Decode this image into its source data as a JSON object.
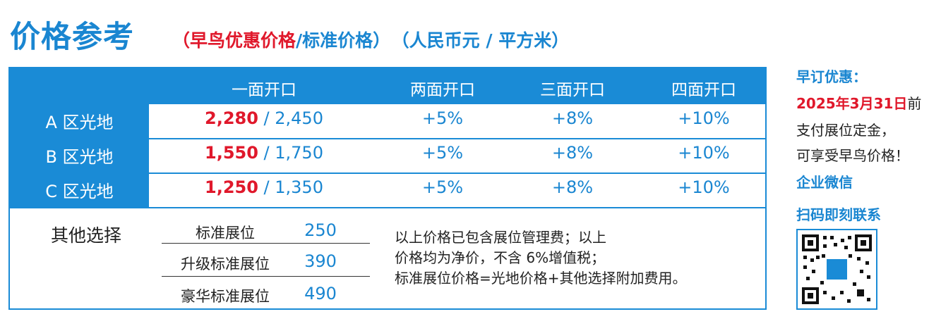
{
  "title": "价格参考",
  "subtitle": {
    "open_paren": "（",
    "early": "早鸟优惠价格",
    "rest": "/标准价格）",
    "unit": "（人民币元 / 平方米）"
  },
  "table": {
    "headers": [
      "一面开口",
      "两面开口",
      "三面开口",
      "四面开口"
    ],
    "rows": [
      {
        "label": "A 区光地",
        "early": "2,280",
        "standard": " / 2,450",
        "two": "+5%",
        "three": "+8%",
        "four": "+10%"
      },
      {
        "label": "B 区光地",
        "early": "1,550",
        "standard": " / 1,750",
        "two": "+5%",
        "three": "+8%",
        "four": "+10%"
      },
      {
        "label": "C 区光地",
        "early": "1,250",
        "standard": " / 1,350",
        "two": "+5%",
        "three": "+8%",
        "four": "+10%"
      }
    ]
  },
  "other": {
    "title": "其他选择",
    "options": [
      {
        "name": "标准展位",
        "price": "250"
      },
      {
        "name": "升级标准展位",
        "price": "390"
      },
      {
        "name": "豪华标准展位",
        "price": "490"
      }
    ],
    "notes": [
      "以上价格已包含展位管理费；以上",
      "价格均为净价，不含 6%增值税；",
      "标准展位价格=光地价格+其他选择附加费用。"
    ]
  },
  "side": {
    "heading": "早订优惠：",
    "deadline": "2025年3月31日",
    "deadline_suffix": "前",
    "line2": "支付展位定金，",
    "line3": "可享受早鸟价格！",
    "wechat1": "企业微信",
    "wechat2": "扫码即刻联系"
  },
  "colors": {
    "accent": "#1a8bd6",
    "highlight": "#e0182b"
  }
}
